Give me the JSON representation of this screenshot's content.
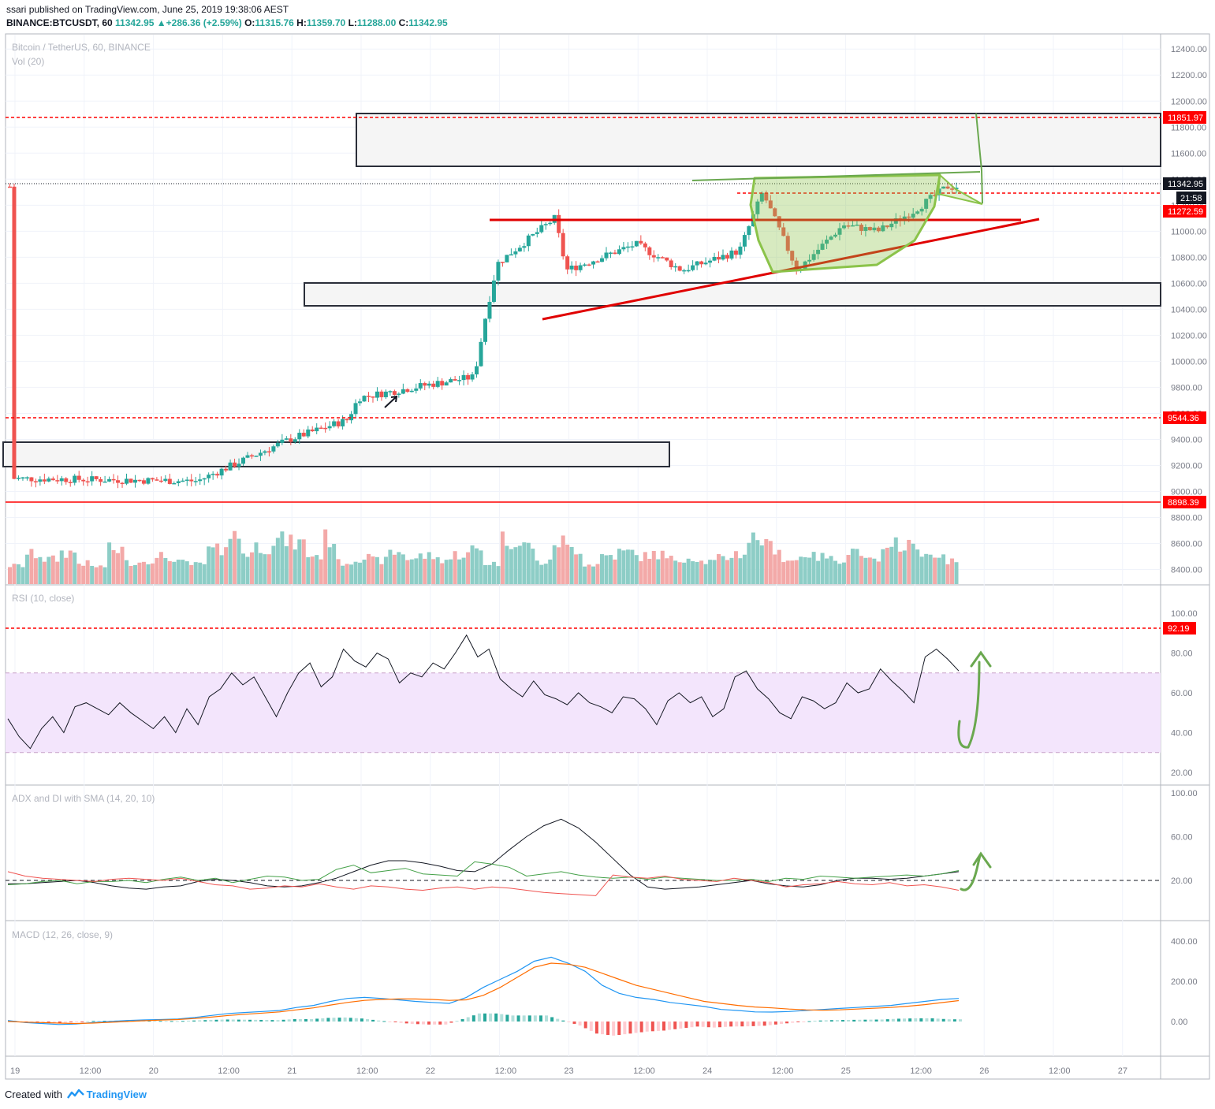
{
  "header": {
    "author": "ssari",
    "published_text": "published on TradingView.com, June 25, 2019 19:38:06 AEST",
    "symbol": "BINANCE:BTCUSDT, 60",
    "last": "11342.95",
    "change": "+286.36 (+2.59%)",
    "change_arrow": "▲",
    "o_label": "O:",
    "o": "11315.76",
    "h_label": "H:",
    "h": "11359.70",
    "l_label": "L:",
    "l": "11288.00",
    "c_label": "C:",
    "c": "11342.95"
  },
  "footer": {
    "created_with": "Created with",
    "brand": "TradingView",
    "logo_icon": "tradingview-logo-icon"
  },
  "colors": {
    "up": "#26a69a",
    "down": "#ef5350",
    "up_vol": "#8dcdc6",
    "down_vol": "#f3a9a8",
    "red_line": "#ff0000",
    "green_draw": "#6aa84f",
    "rsi_band": "#f3e5fc",
    "text": "#131722",
    "axis_text": "#787b86"
  },
  "chart_data": [
    {
      "type": "candlestick",
      "title": "Bitcoin / TetherUS, 60, BINANCE",
      "volume_label": "Vol (20)",
      "x_ticks": [
        "19",
        "12:00",
        "20",
        "12:00",
        "21",
        "12:00",
        "22",
        "12:00",
        "23",
        "12:00",
        "24",
        "12:00",
        "25",
        "12:00",
        "26",
        "12:00",
        "27"
      ],
      "y_ticks": [
        "12400.00",
        "12200.00",
        "12000.00",
        "11800.00",
        "11600.00",
        "11400.00",
        "11200.00",
        "11000.00",
        "10800.00",
        "10600.00",
        "10400.00",
        "10200.00",
        "10000.00",
        "9800.00",
        "9600.00",
        "9400.00",
        "9200.00",
        "9000.00",
        "8800.00",
        "8600.00",
        "8400.00"
      ],
      "y_range": [
        8250,
        12450
      ],
      "last_price": "11342.95",
      "countdown": "21:58",
      "price_labels": [
        "11851.97",
        "11272.59",
        "9544.36",
        "8898.39"
      ],
      "key_points": [
        {
          "x": "19 00:00",
          "price": 9100
        },
        {
          "x": "20 08:00",
          "price": 9080
        },
        {
          "x": "21 00:00",
          "price": 9400
        },
        {
          "x": "21 10:00",
          "price": 9550
        },
        {
          "x": "21 12:00",
          "price": 9720
        },
        {
          "x": "22 00:00",
          "price": 9820
        },
        {
          "x": "22 08:00",
          "price": 9880
        },
        {
          "x": "22 10:00",
          "price": 10350
        },
        {
          "x": "22 12:00",
          "price": 10750
        },
        {
          "x": "22 22:00",
          "price": 11100
        },
        {
          "x": "23 00:00",
          "price": 10700
        },
        {
          "x": "23 12:00",
          "price": 10900
        },
        {
          "x": "23 20:00",
          "price": 10700
        },
        {
          "x": "24 06:00",
          "price": 10850
        },
        {
          "x": "24 10:00",
          "price": 11300
        },
        {
          "x": "24 16:00",
          "price": 10700
        },
        {
          "x": "25 00:00",
          "price": 11050
        },
        {
          "x": "25 06:00",
          "price": 11000
        },
        {
          "x": "25 12:00",
          "price": 11150
        },
        {
          "x": "25 18:00",
          "price": 11342.95
        }
      ],
      "volume_relative": [
        0.22,
        0.5,
        0.38,
        0.55,
        0.28,
        0.2,
        0.62,
        0.3,
        0.36,
        0.45,
        0.3,
        0.25,
        0.6,
        0.95,
        0.55,
        0.7,
        0.85,
        0.78,
        0.48,
        0.9,
        0.3,
        0.42,
        0.35,
        0.55,
        0.4,
        0.46,
        0.38,
        0.5,
        0.62,
        0.28,
        0.88,
        0.72,
        0.3,
        0.82,
        0.65,
        0.25,
        0.48,
        0.55,
        0.45,
        0.5,
        0.38,
        0.42,
        0.32,
        0.4,
        0.52,
        0.9,
        0.7,
        0.35,
        0.52,
        0.44,
        0.38,
        0.6,
        0.34,
        0.55,
        0.8,
        0.62,
        0.4,
        0.36
      ]
    },
    {
      "type": "line",
      "title": "RSI (10, close)",
      "y_ticks": [
        "100.00",
        "80.00",
        "60.00",
        "40.00",
        "20.00"
      ],
      "y_range": [
        15,
        107
      ],
      "band": [
        30,
        70
      ],
      "level_label": "92.19",
      "values": [
        47,
        38,
        32,
        42,
        48,
        40,
        53,
        55,
        52,
        49,
        55,
        50,
        46,
        42,
        48,
        40,
        52,
        44,
        58,
        62,
        70,
        64,
        68,
        58,
        48,
        60,
        70,
        75,
        63,
        68,
        82,
        76,
        73,
        80,
        77,
        65,
        70,
        68,
        75,
        72,
        80,
        89,
        78,
        82,
        67,
        62,
        58,
        66,
        59,
        57,
        54,
        60,
        55,
        53,
        50,
        58,
        57,
        52,
        44,
        56,
        60,
        55,
        58,
        48,
        52,
        68,
        71,
        62,
        57,
        50,
        47,
        58,
        56,
        52,
        55,
        65,
        60,
        62,
        72,
        66,
        61,
        55,
        78,
        82,
        77,
        71
      ]
    },
    {
      "type": "line",
      "title": "ADX and DI with SMA (14, 20, 10)",
      "y_ticks": [
        "100.00",
        "60.00",
        "20.00"
      ],
      "y_range": [
        -15,
        105
      ],
      "level": 20,
      "series": [
        {
          "values": [
            17,
            17,
            18,
            19,
            20,
            18,
            15,
            13,
            12,
            14,
            15,
            19,
            21,
            20,
            18,
            15,
            14,
            15,
            18,
            22,
            28,
            34,
            38,
            38,
            36,
            33,
            29,
            28,
            35,
            48,
            60,
            70,
            76,
            68,
            55,
            40,
            25,
            14,
            12,
            13,
            14,
            16,
            18,
            20,
            17,
            15,
            14,
            16,
            20,
            22,
            22,
            21,
            22,
            24,
            26,
            28
          ]
        },
        {
          "values": [
            16,
            17,
            19,
            20,
            17,
            19,
            19,
            20,
            18,
            21,
            23,
            20,
            22,
            18,
            21,
            24,
            23,
            20,
            21,
            30,
            34,
            27,
            29,
            31,
            26,
            25,
            24,
            37,
            35,
            32,
            24,
            26,
            28,
            25,
            23,
            22,
            23,
            21,
            23,
            22,
            21,
            20,
            20,
            21,
            19,
            22,
            21,
            24,
            23,
            22,
            23,
            24,
            25,
            24,
            26,
            29
          ]
        },
        {
          "values": [
            28,
            24,
            22,
            21,
            20,
            19,
            21,
            22,
            21,
            20,
            22,
            19,
            16,
            15,
            12,
            13,
            15,
            14,
            17,
            14,
            12,
            15,
            14,
            12,
            11,
            13,
            14,
            12,
            14,
            13,
            11,
            9,
            8,
            7,
            6,
            25,
            23,
            22,
            24,
            21,
            20,
            19,
            22,
            20,
            18,
            14,
            16,
            17,
            19,
            17,
            16,
            18,
            15,
            16,
            14,
            11
          ]
        }
      ]
    },
    {
      "type": "line",
      "title": "MACD (12, 26, close, 9)",
      "y_ticks": [
        "400.00",
        "200.00",
        "0.00"
      ],
      "y_range": [
        -215,
        450
      ],
      "series": [
        {
          "values": [
            5,
            -5,
            -10,
            -15,
            -12,
            -5,
            0,
            5,
            8,
            10,
            12,
            20,
            30,
            40,
            45,
            50,
            55,
            70,
            80,
            100,
            115,
            120,
            115,
            108,
            100,
            95,
            90,
            120,
            170,
            210,
            250,
            300,
            320,
            290,
            250,
            180,
            140,
            120,
            110,
            95,
            85,
            75,
            60,
            55,
            48,
            47,
            50,
            55,
            60,
            65,
            70,
            75,
            80,
            90,
            100,
            110,
            115
          ]
        },
        {
          "values": [
            0,
            -3,
            -5,
            -8,
            -10,
            -8,
            -4,
            0,
            4,
            7,
            10,
            15,
            22,
            30,
            36,
            42,
            48,
            58,
            68,
            82,
            95,
            105,
            110,
            112,
            112,
            110,
            105,
            108,
            130,
            170,
            220,
            270,
            290,
            285,
            270,
            240,
            210,
            180,
            160,
            140,
            120,
            100,
            90,
            80,
            72,
            68,
            62,
            58,
            56,
            58,
            62,
            66,
            70,
            76,
            84,
            94,
            104
          ]
        }
      ]
    }
  ]
}
